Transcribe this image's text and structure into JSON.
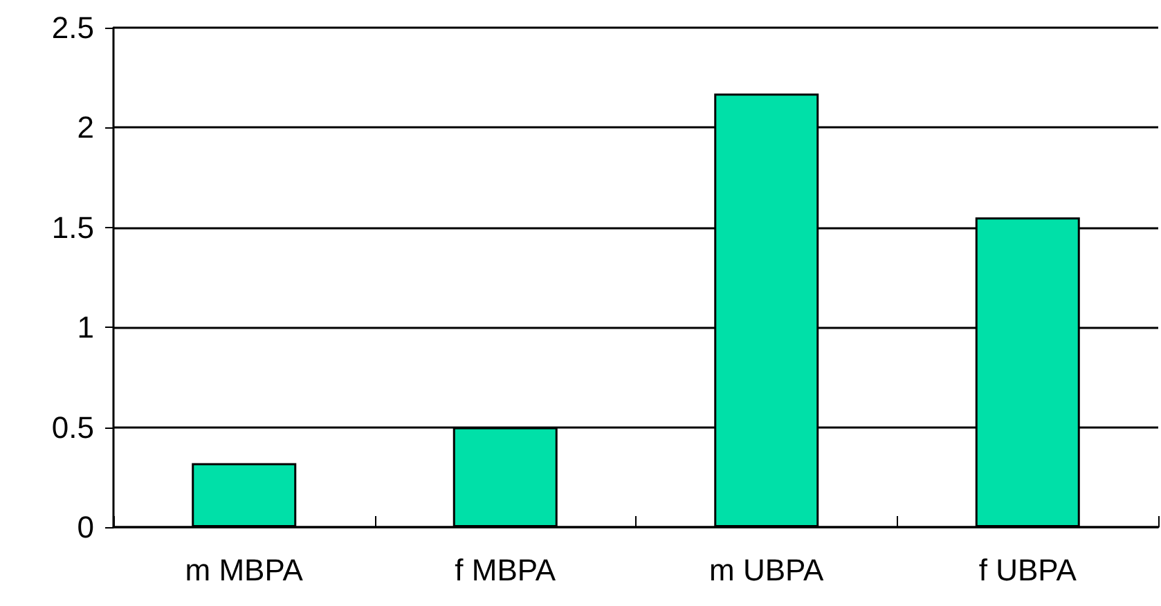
{
  "chart_data": {
    "type": "bar",
    "categories": [
      "m MBPA",
      "f MBPA",
      "m UBPA",
      "f UBPA"
    ],
    "values": [
      0.32,
      0.5,
      2.17,
      1.55
    ],
    "color": "#00e0a8",
    "ylim": [
      0,
      2.5
    ],
    "yticks": [
      0,
      0.5,
      1,
      1.5,
      2,
      2.5
    ],
    "grid": "y"
  }
}
